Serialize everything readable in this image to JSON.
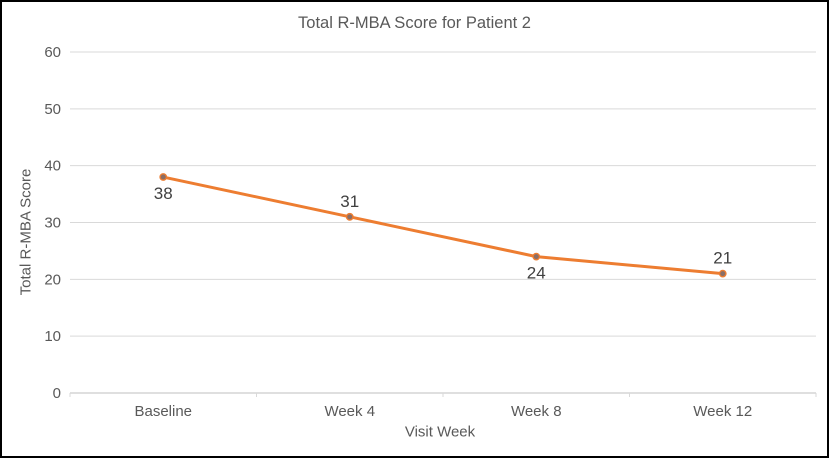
{
  "window": {
    "background_color": "#FFFFFF",
    "border_color": "#000000"
  },
  "chart_data": {
    "type": "line",
    "title": "Total R-MBA Score for Patient 2",
    "xlabel": "Visit Week",
    "ylabel": "Total R-MBA Score",
    "categories": [
      "Baseline",
      "Week 4",
      "Week 8",
      "Week 12"
    ],
    "values": [
      38,
      31,
      24,
      21
    ],
    "data_labels": [
      "38",
      "31",
      "24",
      "21"
    ],
    "data_label_positions": [
      "below",
      "above",
      "below",
      "above"
    ],
    "ylim": [
      0,
      60
    ],
    "yticks": [
      0,
      10,
      20,
      30,
      40,
      50,
      60
    ],
    "grid": true,
    "legend": "none",
    "line_color": "#ED7D31",
    "marker": "circle",
    "marker_fill": "#8A6E66",
    "marker_stroke": "#ED7D31",
    "gridline_color": "#D9D9D9",
    "axis_line_color": "#BFBFBF",
    "axis_text_color": "#595959",
    "title_color": "#595959",
    "data_label_color": "#404040"
  }
}
